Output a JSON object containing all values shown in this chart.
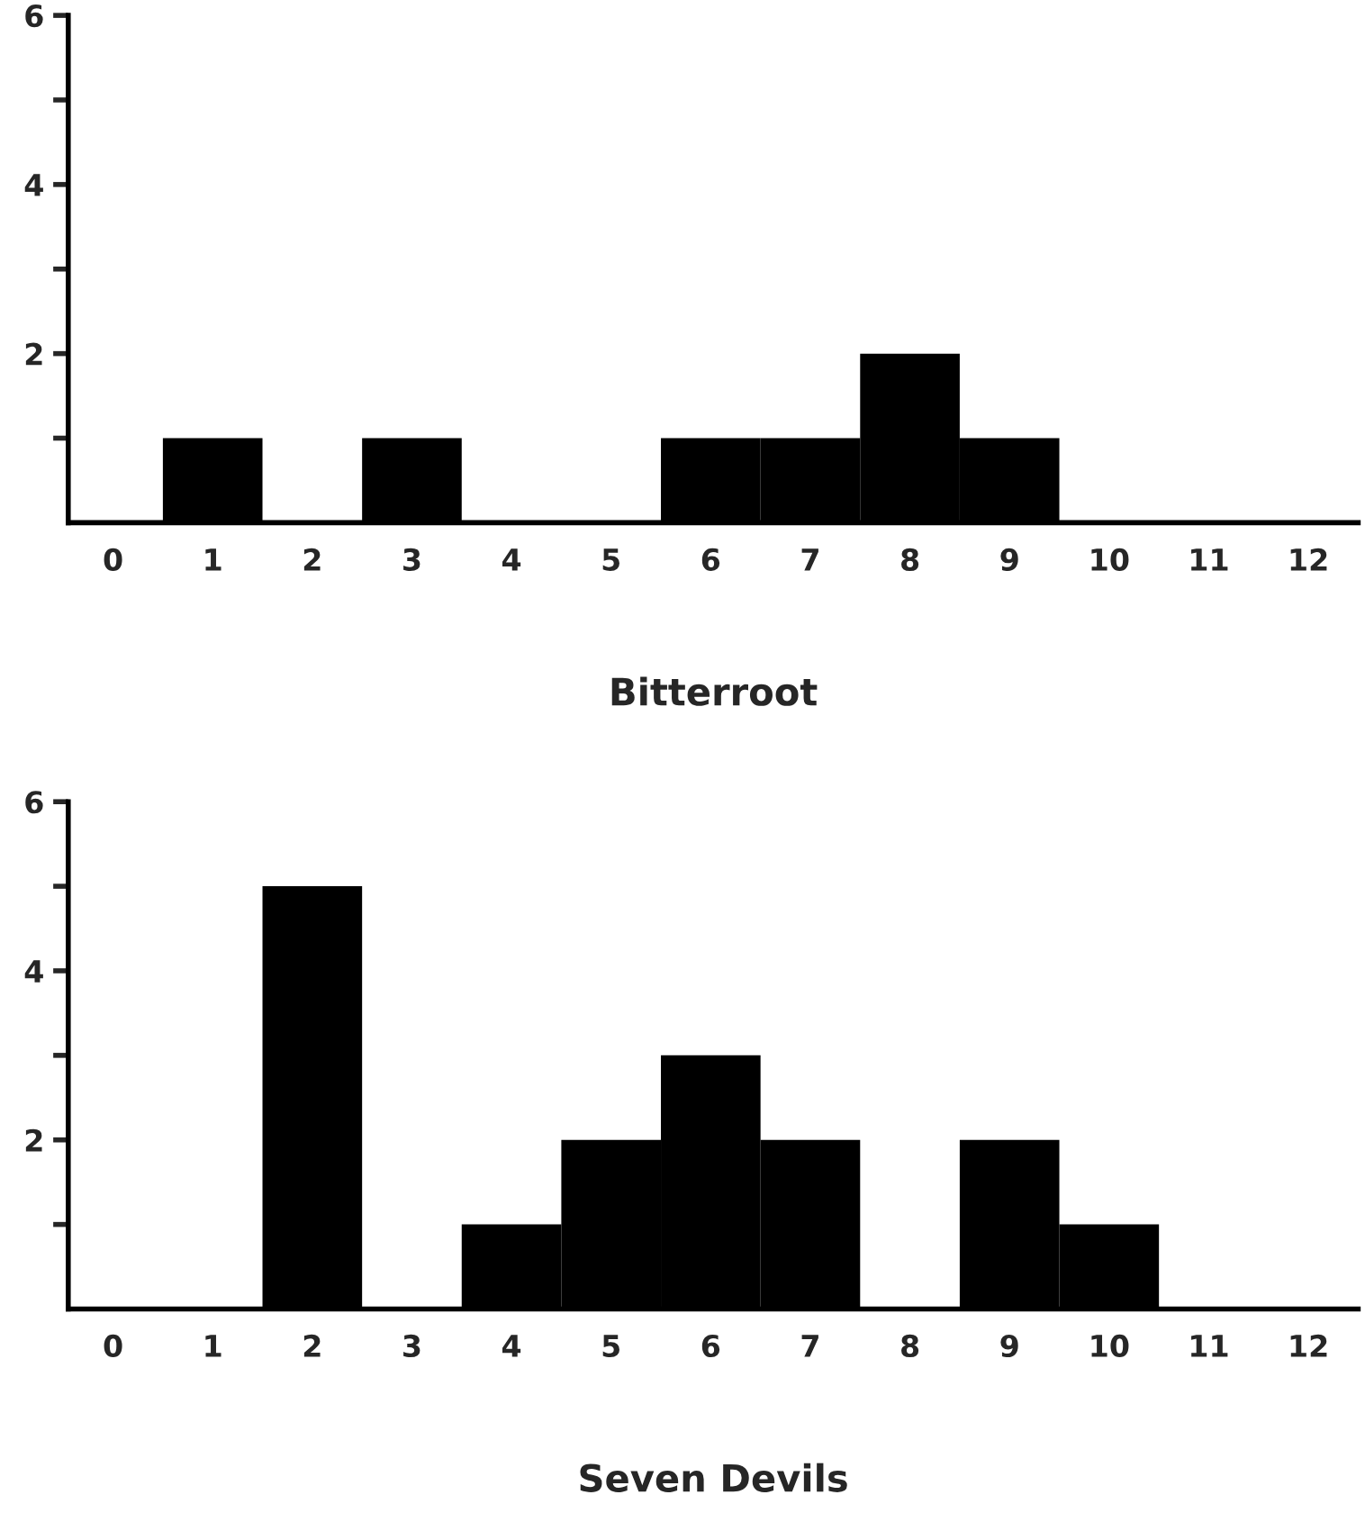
{
  "chart_data": [
    {
      "type": "bar",
      "xlabel": "Bitterroot",
      "categories": [
        "0",
        "1",
        "2",
        "3",
        "4",
        "5",
        "6",
        "7",
        "8",
        "9",
        "10",
        "11",
        "12"
      ],
      "color": "#000000",
      "values": [
        0,
        1,
        0,
        1,
        0,
        0,
        1,
        1,
        2,
        1,
        0,
        0,
        0
      ],
      "ylim": [
        0,
        6
      ],
      "yticks": [
        {
          "value": 1,
          "label": null
        },
        2,
        {
          "value": 3,
          "label": null
        },
        4,
        {
          "value": 5,
          "label": null
        },
        6
      ],
      "grid": false
    },
    {
      "type": "bar",
      "xlabel": "Seven Devils",
      "categories": [
        "0",
        "1",
        "2",
        "3",
        "4",
        "5",
        "6",
        "7",
        "8",
        "9",
        "10",
        "11",
        "12"
      ],
      "color": "#000000",
      "values": [
        0,
        0,
        5,
        0,
        1,
        2,
        3,
        2,
        0,
        2,
        1,
        0,
        0
      ],
      "ylim": [
        0,
        6
      ],
      "yticks": [
        {
          "value": 1,
          "label": null
        },
        2,
        {
          "value": 3,
          "label": null
        },
        4,
        {
          "value": 5,
          "label": null
        },
        6
      ],
      "grid": false
    }
  ]
}
